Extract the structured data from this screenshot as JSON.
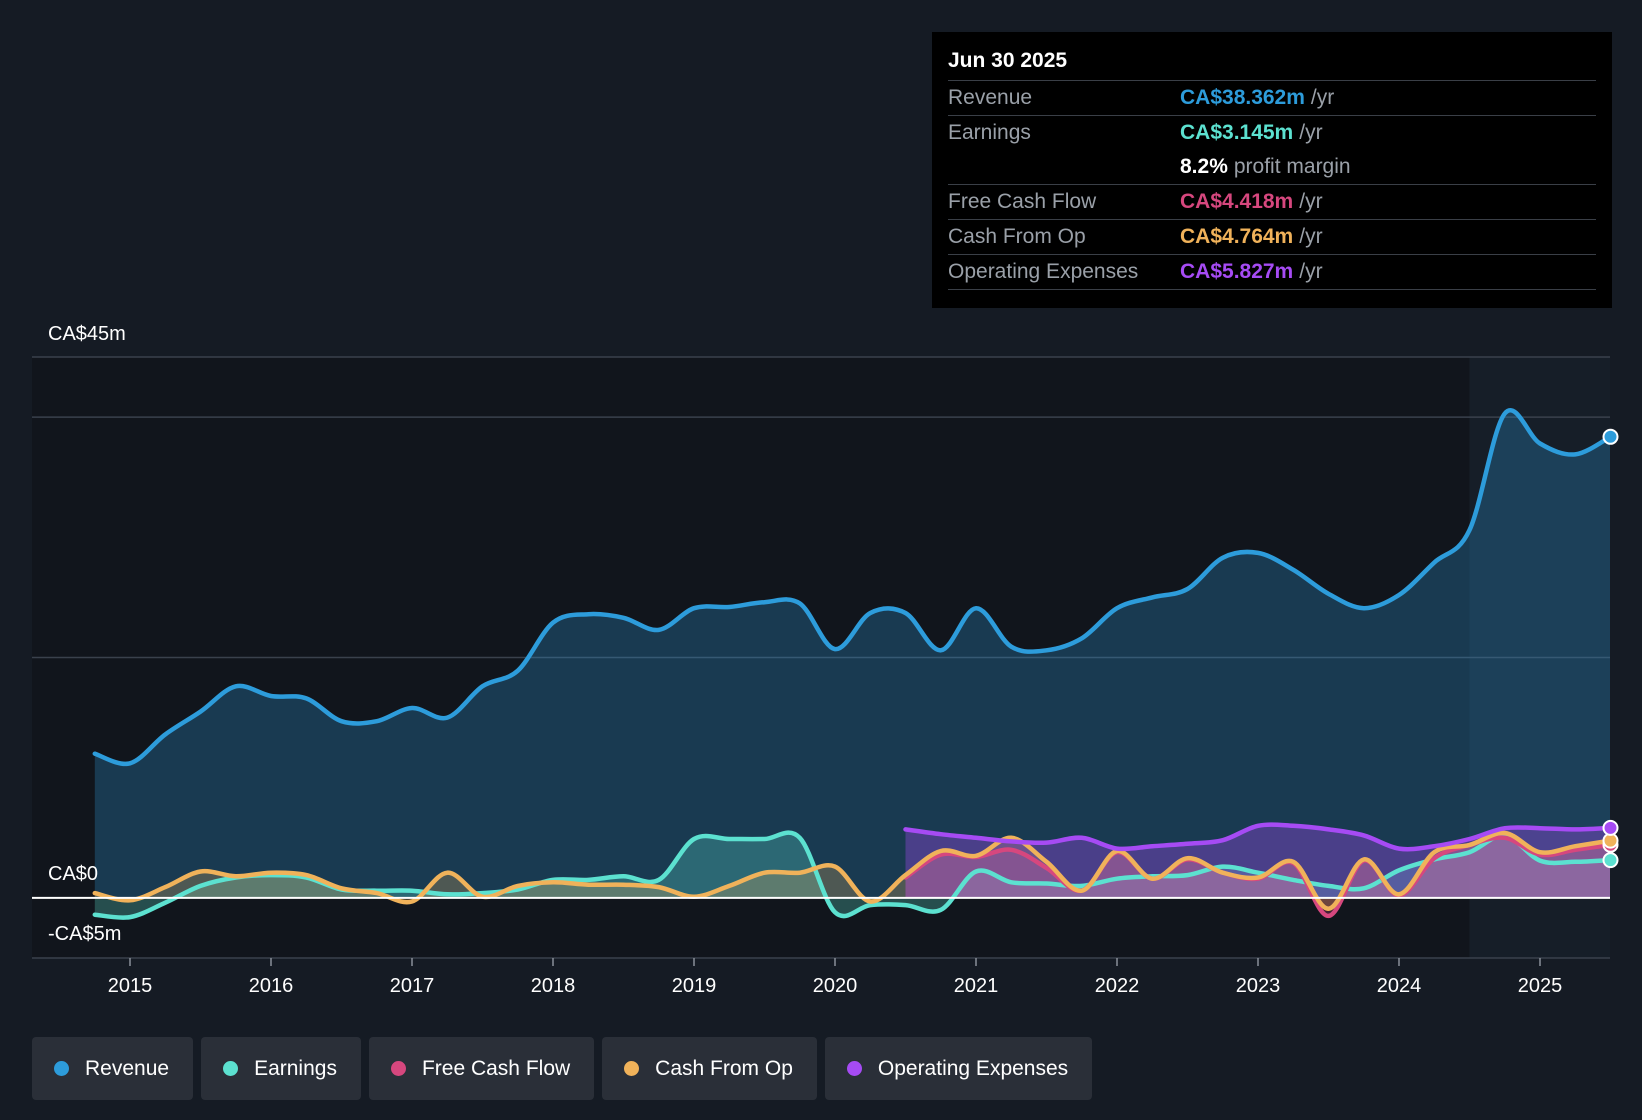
{
  "tooltip": {
    "date": "Jun 30 2025",
    "rows": [
      {
        "label": "Revenue",
        "value": "CA$38.362m",
        "unit": "/yr",
        "color": "#2d9cdb"
      },
      {
        "label": "Earnings",
        "value": "CA$3.145m",
        "unit": "/yr",
        "color": "#5ce1d0"
      },
      {
        "margin_value": "8.2%",
        "margin_label": "profit margin"
      },
      {
        "label": "Free Cash Flow",
        "value": "CA$4.418m",
        "unit": "/yr",
        "color": "#d6477e"
      },
      {
        "label": "Cash From Op",
        "value": "CA$4.764m",
        "unit": "/yr",
        "color": "#f0b25a"
      },
      {
        "label": "Operating Expenses",
        "value": "CA$5.827m",
        "unit": "/yr",
        "color": "#a64bf4"
      }
    ]
  },
  "legend": [
    {
      "label": "Revenue",
      "color": "#2d9cdb"
    },
    {
      "label": "Earnings",
      "color": "#5ce1d0"
    },
    {
      "label": "Free Cash Flow",
      "color": "#d6477e"
    },
    {
      "label": "Cash From Op",
      "color": "#f0b25a"
    },
    {
      "label": "Operating Expenses",
      "color": "#a64bf4"
    }
  ],
  "chart_data": {
    "type": "area",
    "title": "",
    "xlabel": "",
    "ylabel": "",
    "y_labels": {
      "top": "CA$45m",
      "zero": "CA$0",
      "bottom": "-CA$5m"
    },
    "ylim": [
      -5,
      45
    ],
    "xlim": [
      2014.75,
      2025.5
    ],
    "x_ticks": [
      2015,
      2016,
      2017,
      2018,
      2019,
      2020,
      2021,
      2022,
      2023,
      2024,
      2025
    ],
    "x_tick_labels": [
      "2015",
      "2016",
      "2017",
      "2018",
      "2019",
      "2020",
      "2021",
      "2022",
      "2023",
      "2024",
      "2025"
    ],
    "highlight_start": 2024.5,
    "series": [
      {
        "name": "Revenue",
        "color": "#2d9cdb",
        "x": [
          2014.75,
          2015.0,
          2015.25,
          2015.5,
          2015.75,
          2016.0,
          2016.25,
          2016.5,
          2016.75,
          2017.0,
          2017.25,
          2017.5,
          2017.75,
          2018.0,
          2018.25,
          2018.5,
          2018.75,
          2019.0,
          2019.25,
          2019.5,
          2019.75,
          2020.0,
          2020.25,
          2020.5,
          2020.75,
          2021.0,
          2021.25,
          2021.5,
          2021.75,
          2022.0,
          2022.25,
          2022.5,
          2022.75,
          2023.0,
          2023.25,
          2023.5,
          2023.75,
          2024.0,
          2024.25,
          2024.5,
          2024.75,
          2025.0,
          2025.25,
          2025.5
        ],
        "values": [
          12.0,
          11.2,
          13.6,
          15.5,
          17.6,
          16.8,
          16.6,
          14.7,
          14.7,
          15.8,
          15.0,
          17.6,
          18.9,
          22.9,
          23.6,
          23.3,
          22.3,
          24.1,
          24.2,
          24.6,
          24.5,
          20.7,
          23.7,
          23.7,
          20.6,
          24.1,
          20.9,
          20.6,
          21.6,
          24.1,
          25.0,
          25.7,
          28.3,
          28.7,
          27.3,
          25.3,
          24.1,
          25.2,
          27.9,
          30.6,
          40.3,
          37.8,
          36.9,
          38.362
        ]
      },
      {
        "name": "Earnings",
        "color": "#5ce1d0",
        "x": [
          2014.75,
          2015.0,
          2015.25,
          2015.5,
          2015.75,
          2016.0,
          2016.25,
          2016.5,
          2016.75,
          2017.0,
          2017.25,
          2017.5,
          2017.75,
          2018.0,
          2018.25,
          2018.5,
          2018.75,
          2019.0,
          2019.25,
          2019.5,
          2019.75,
          2020.0,
          2020.25,
          2020.5,
          2020.75,
          2021.0,
          2021.25,
          2021.5,
          2021.75,
          2022.0,
          2022.25,
          2022.5,
          2022.75,
          2023.0,
          2023.25,
          2023.5,
          2023.75,
          2024.0,
          2024.25,
          2024.5,
          2024.75,
          2025.0,
          2025.25,
          2025.5
        ],
        "values": [
          -1.4,
          -1.6,
          -0.4,
          1.0,
          1.7,
          1.9,
          1.7,
          0.7,
          0.6,
          0.6,
          0.3,
          0.4,
          0.7,
          1.5,
          1.5,
          1.8,
          1.5,
          4.9,
          4.9,
          4.9,
          5.0,
          -1.2,
          -0.6,
          -0.6,
          -1.0,
          2.2,
          1.3,
          1.2,
          1.0,
          1.6,
          1.8,
          1.9,
          2.6,
          2.1,
          1.5,
          1.0,
          0.8,
          2.3,
          3.2,
          3.8,
          5.2,
          3.1,
          3.0,
          3.145
        ]
      },
      {
        "name": "Free Cash Flow",
        "color": "#d6477e",
        "x": [
          2020.5,
          2020.75,
          2021.0,
          2021.25,
          2021.5,
          2021.75,
          2022.0,
          2022.25,
          2022.5,
          2022.75,
          2023.0,
          2023.25,
          2023.5,
          2023.75,
          2024.0,
          2024.25,
          2024.5,
          2024.75,
          2025.0,
          2025.25,
          2025.5
        ],
        "values": [
          1.7,
          3.6,
          3.4,
          4.0,
          2.5,
          0.6,
          3.8,
          1.6,
          3.2,
          2.1,
          1.6,
          2.9,
          -1.5,
          3.1,
          0.2,
          3.3,
          4.4,
          5.0,
          3.6,
          4.0,
          4.418
        ]
      },
      {
        "name": "Cash From Op",
        "color": "#f0b25a",
        "x": [
          2014.75,
          2015.0,
          2015.25,
          2015.5,
          2015.75,
          2016.0,
          2016.25,
          2016.5,
          2016.75,
          2017.0,
          2017.25,
          2017.5,
          2017.75,
          2018.0,
          2018.25,
          2018.5,
          2018.75,
          2019.0,
          2019.25,
          2019.5,
          2019.75,
          2020.0,
          2020.25,
          2020.5,
          2020.75,
          2021.0,
          2021.25,
          2021.5,
          2021.75,
          2022.0,
          2022.25,
          2022.5,
          2022.75,
          2023.0,
          2023.25,
          2023.5,
          2023.75,
          2024.0,
          2024.25,
          2024.5,
          2024.75,
          2025.0,
          2025.25,
          2025.5
        ],
        "values": [
          0.4,
          -0.2,
          0.9,
          2.2,
          1.8,
          2.1,
          1.9,
          0.8,
          0.4,
          -0.3,
          2.1,
          0.1,
          1.0,
          1.3,
          1.1,
          1.1,
          0.9,
          0.1,
          1.0,
          2.1,
          2.1,
          2.6,
          -0.3,
          1.9,
          3.9,
          3.5,
          5.0,
          3.0,
          0.6,
          3.9,
          1.6,
          3.3,
          2.1,
          1.7,
          3.0,
          -0.9,
          3.2,
          0.3,
          3.8,
          4.4,
          5.4,
          3.8,
          4.3,
          4.764
        ]
      },
      {
        "name": "Operating Expenses",
        "color": "#a64bf4",
        "x": [
          2020.5,
          2020.75,
          2021.0,
          2021.25,
          2021.5,
          2021.75,
          2022.0,
          2022.25,
          2022.5,
          2022.75,
          2023.0,
          2023.25,
          2023.5,
          2023.75,
          2024.0,
          2024.25,
          2024.5,
          2024.75,
          2025.0,
          2025.25,
          2025.5
        ],
        "values": [
          5.7,
          5.3,
          5.0,
          4.7,
          4.6,
          5.0,
          4.1,
          4.3,
          4.5,
          4.8,
          6.0,
          6.0,
          5.7,
          5.2,
          4.1,
          4.3,
          4.9,
          5.8,
          5.8,
          5.7,
          5.827
        ]
      }
    ]
  }
}
